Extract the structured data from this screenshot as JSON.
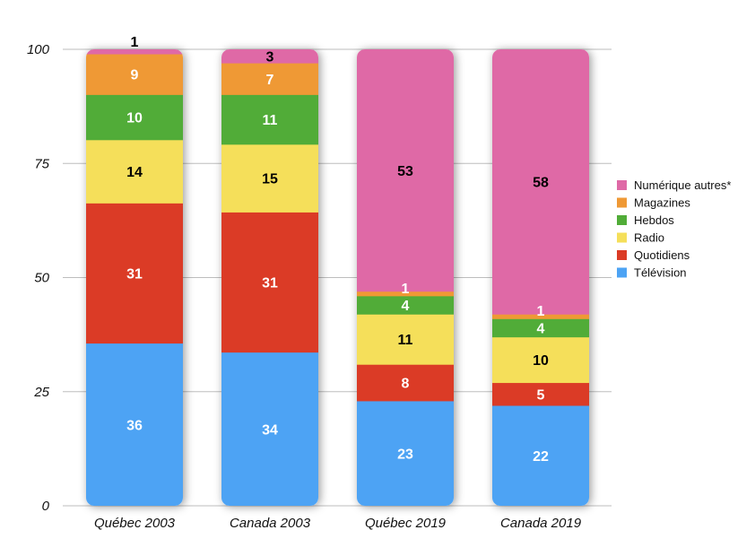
{
  "chart_data": {
    "type": "bar",
    "stacked": true,
    "categories": [
      "Québec 2003",
      "Canada 2003",
      "Québec 2019",
      "Canada 2019"
    ],
    "series": [
      {
        "name": "Télévision",
        "color": "#4da3f4",
        "values": [
          36,
          34,
          23,
          22
        ],
        "labels": [
          "36",
          "34",
          "23",
          "22"
        ],
        "label_color": "#ffffff"
      },
      {
        "name": "Quotidiens",
        "color": "#db3b26",
        "values": [
          31,
          31,
          8,
          5
        ],
        "labels": [
          "31",
          "31",
          "8",
          "5"
        ],
        "label_color": "#ffffff"
      },
      {
        "name": "Radio",
        "color": "#f5df5a",
        "values": [
          14,
          15,
          11,
          10
        ],
        "labels": [
          "14",
          "15",
          "11",
          "10"
        ],
        "label_color": "#000000"
      },
      {
        "name": "Hebdos",
        "color": "#51ac38",
        "values": [
          10,
          11,
          4,
          4
        ],
        "labels": [
          "10",
          "11",
          "4",
          "4"
        ],
        "label_color": "#ffffff"
      },
      {
        "name": "Magazines",
        "color": "#ef9935",
        "values": [
          9,
          7,
          1,
          1
        ],
        "labels": [
          "9",
          "7",
          "1",
          "1"
        ],
        "label_color": "#ffffff"
      },
      {
        "name": "Numérique autres*",
        "color": "#df69a6",
        "values": [
          1,
          3,
          53,
          58
        ],
        "labels": [
          "1",
          "3",
          "53",
          "58"
        ],
        "label_color": "#000000"
      }
    ],
    "ylim": [
      0,
      100
    ],
    "yticks": [
      "0",
      "25",
      "50",
      "75",
      "100"
    ],
    "grid": true,
    "legend_position": "right",
    "xlabel": "",
    "ylabel": "",
    "title": ""
  }
}
